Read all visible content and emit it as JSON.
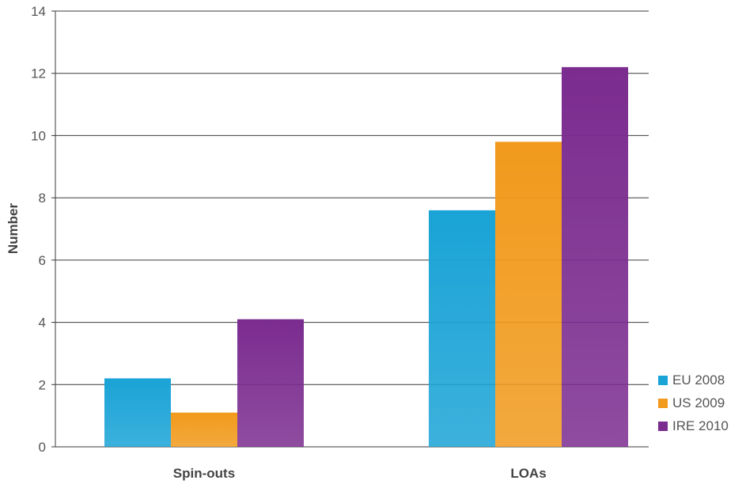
{
  "chart_data": {
    "type": "bar",
    "categories": [
      "Spin-outs",
      "LOAs"
    ],
    "series": [
      {
        "name": "EU 2008",
        "values": [
          2.2,
          7.6
        ],
        "color": "#1aa3d6"
      },
      {
        "name": "US 2009",
        "values": [
          1.1,
          9.8
        ],
        "color": "#f19a1c"
      },
      {
        "name": "IRE 2010",
        "values": [
          4.1,
          12.2
        ],
        "color": "#7b2c8f"
      }
    ],
    "title": "",
    "xlabel": "",
    "ylabel": "Number",
    "ylim": [
      0,
      14
    ],
    "yticks": [
      0,
      2,
      4,
      6,
      8,
      10,
      12,
      14
    ],
    "grid": true,
    "legend_position": "bottom-right"
  }
}
